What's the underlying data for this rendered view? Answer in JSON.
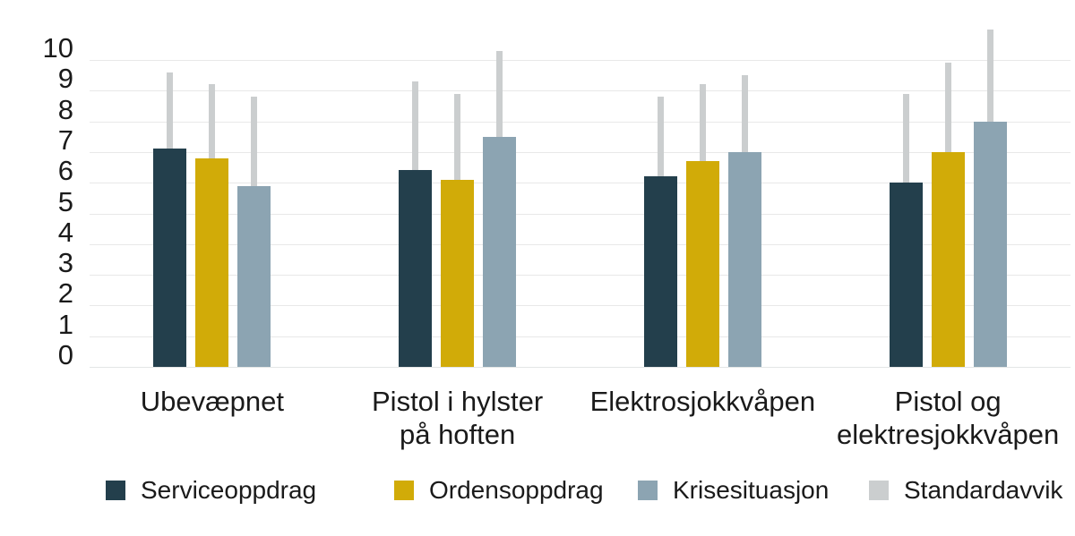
{
  "chart_data": {
    "type": "bar",
    "title": "",
    "categories": [
      {
        "lines": [
          "Ubevæpnet"
        ]
      },
      {
        "lines": [
          "Pistol i hylster",
          "på hoften"
        ]
      },
      {
        "lines": [
          "Elektrosjokkvåpen"
        ]
      },
      {
        "lines": [
          "Pistol og",
          "elektresjokkvåpen"
        ]
      }
    ],
    "series": [
      {
        "name": "Serviceoppdrag",
        "color": "#233f4c",
        "values": [
          7.1,
          6.4,
          6.2,
          6.0
        ],
        "whisker_tops": [
          9.6,
          9.3,
          8.8,
          8.9
        ]
      },
      {
        "name": "Ordensoppdrag",
        "color": "#d1ab08",
        "values": [
          6.8,
          6.1,
          6.7,
          7.0
        ],
        "whisker_tops": [
          9.2,
          8.9,
          9.2,
          9.9
        ]
      },
      {
        "name": "Krisesituasjon",
        "color": "#8ca4b2",
        "values": [
          5.9,
          7.5,
          7.0,
          8.0
        ],
        "whisker_tops": [
          8.8,
          10.3,
          9.5,
          11.0
        ]
      }
    ],
    "error_bars": {
      "label": "Standardavvik",
      "color": "#cbcecf"
    },
    "ylim": [
      0,
      10
    ],
    "yticks": [
      0,
      1,
      2,
      3,
      4,
      5,
      6,
      7,
      8,
      9,
      10
    ],
    "grid": "horizontal",
    "legend_position": "bottom"
  },
  "legend": {
    "items": [
      {
        "label": "Serviceoppdrag",
        "color": "#233f4c"
      },
      {
        "label": "Ordensoppdrag",
        "color": "#d1ab08"
      },
      {
        "label": "Krisesituasjon",
        "color": "#8ca4b2"
      },
      {
        "label": "Standardavvik",
        "color": "#cbcecf"
      }
    ]
  },
  "colors": {
    "gridline": "#e8e8e8",
    "axis_baseline": "#e3e6e6",
    "text": "#1a1a1a",
    "background": "#ffffff"
  }
}
